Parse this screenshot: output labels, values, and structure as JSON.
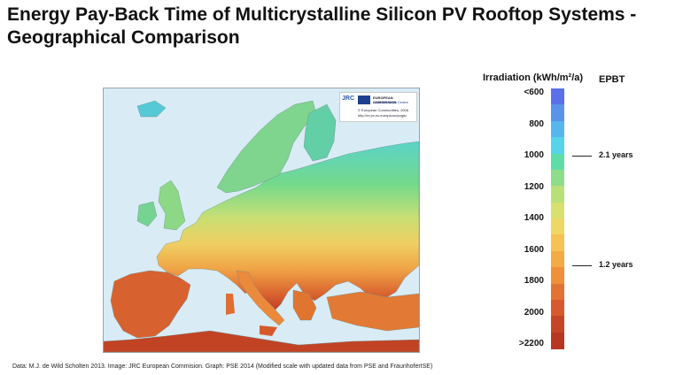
{
  "title": "Energy Pay-Back Time of Multicrystalline Silicon PV Rooftop Systems - Geographical Comparison",
  "legend": {
    "title": "Irradiation (kWh/m²/a)",
    "epbt_title": "EPBT",
    "ticks": [
      "<600",
      "800",
      "1000",
      "1200",
      "1400",
      "1600",
      "1800",
      "2000",
      ">2200"
    ],
    "colors": [
      "#5b6fe8",
      "#5a93ea",
      "#56b6ee",
      "#55d4ea",
      "#5fdda8",
      "#8fdc8a",
      "#b9df79",
      "#d9e06d",
      "#efd766",
      "#f5c253",
      "#f3ab45",
      "#f0903b",
      "#e37334",
      "#d65a2d",
      "#c64528",
      "#b83724"
    ],
    "epbt": [
      {
        "label": "2.1 years",
        "irradiation": 1000
      },
      {
        "label": "1.2 years",
        "irradiation": 1700
      }
    ]
  },
  "map": {
    "badge": {
      "logo": "JRC",
      "ec": "EUROPEAN COMMISSION",
      "jrc": "Joint Research Centre",
      "copyright": "© European Communities, 2006",
      "url": "http://re.jrc.ec.europa.eu/pvgis/"
    }
  },
  "footer": "Data: M.J. de Wild Scholten 2013.  Image: JRC European Commision. Graph: PSE 2014 (Modified scale with updated data from PSE and FraunhoferISE)"
}
